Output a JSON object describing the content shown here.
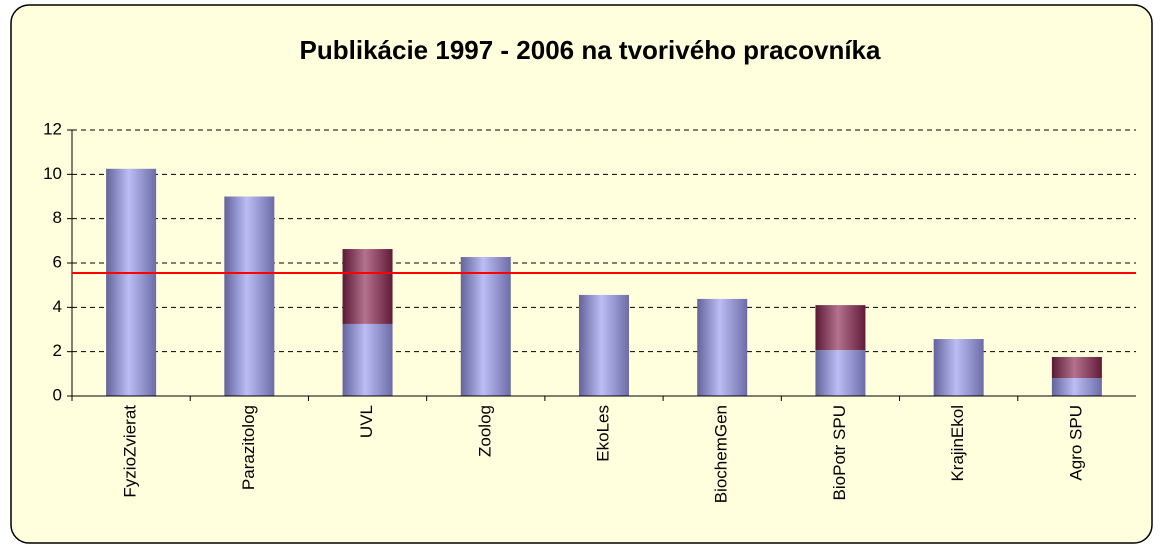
{
  "chart_data": {
    "type": "stacked_bar",
    "title": "Publikácie 1997 - 2006 na tvorivého pracovníka",
    "categories": [
      "FyzioZvierat",
      "Parazitolog",
      "UVL",
      "Zoolog",
      "EkoLes",
      "BiochemGen",
      "BioPotr SPU",
      "KrajinEkol",
      "Agro SPU"
    ],
    "series": [
      {
        "color": "#9a9af0",
        "values": [
          10.25,
          9.0,
          3.25,
          6.27,
          4.56,
          4.38,
          2.07,
          2.57,
          0.81
        ]
      },
      {
        "color": "#8a2650",
        "values": [
          0,
          0,
          3.38,
          0,
          0,
          0,
          2.03,
          0,
          0.95
        ]
      }
    ],
    "reference_line": {
      "value": 5.55,
      "color": "#ff0000"
    },
    "ylim": [
      0,
      12
    ],
    "yticks": [
      0,
      2,
      4,
      6,
      8,
      10,
      12
    ],
    "grid": true,
    "background": "#ffffdd"
  }
}
